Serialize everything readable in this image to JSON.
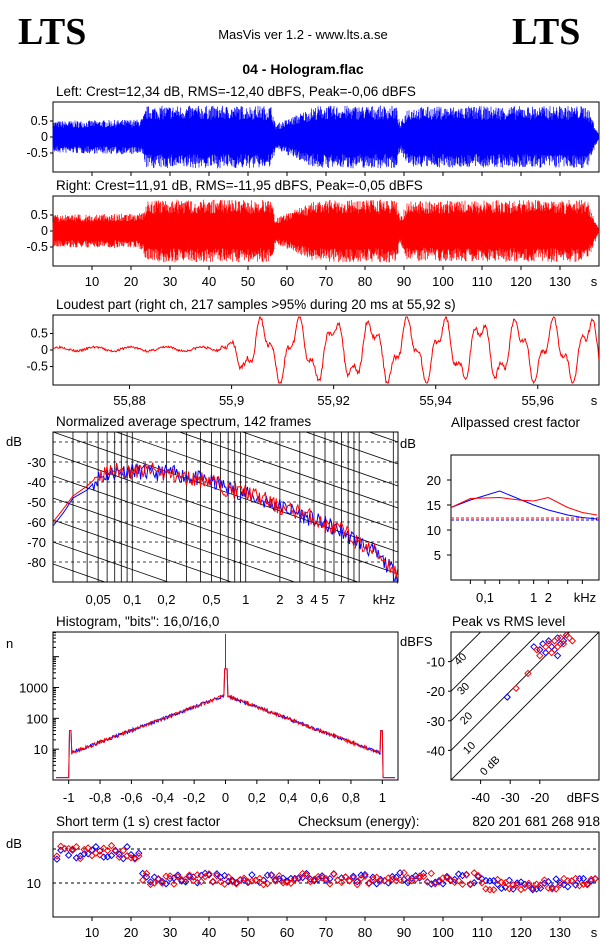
{
  "header": {
    "logo_left": "LTS",
    "logo_right": "LTS",
    "subtitle": "MasVis ver 1.2 - www.lts.a.se",
    "track_title": "04 - Hologram.flac"
  },
  "chart_data": [
    {
      "id": "left-waveform",
      "type": "area",
      "title": "Left: Crest=12,34 dB, RMS=-12,40 dBFS, Peak=-0,06 dBFS",
      "color": "#0000ff",
      "yticks": [
        "0.5",
        "0",
        "-0.5"
      ],
      "ylim": [
        -1,
        1
      ],
      "xlim": [
        0,
        140
      ],
      "x_unit": "s",
      "envelope": {
        "x": [
          0,
          22,
          23,
          24,
          26,
          56,
          57,
          59,
          66,
          68,
          88,
          89,
          91,
          137,
          140
        ],
        "peak": [
          0.5,
          0.55,
          0.6,
          0.97,
          0.98,
          0.98,
          0.4,
          0.5,
          0.9,
          0.98,
          0.98,
          0.4,
          0.95,
          0.98,
          0.05
        ]
      }
    },
    {
      "id": "right-waveform",
      "type": "area",
      "title": "Right: Crest=11,91 dB, RMS=-11,95 dBFS, Peak=-0,05 dBFS",
      "color": "#ff0000",
      "yticks": [
        "0.5",
        "0",
        "-0.5"
      ],
      "ylim": [
        -1,
        1
      ],
      "xlim": [
        0,
        140
      ],
      "x_unit": "s",
      "xticks": [
        "10",
        "20",
        "30",
        "40",
        "50",
        "60",
        "70",
        "80",
        "90",
        "100",
        "110",
        "120",
        "130",
        "s"
      ],
      "envelope": {
        "x": [
          0,
          22,
          23,
          24,
          26,
          56,
          57,
          59,
          66,
          68,
          88,
          89,
          91,
          137,
          140
        ],
        "peak": [
          0.5,
          0.55,
          0.6,
          0.97,
          0.98,
          0.98,
          0.4,
          0.5,
          0.9,
          0.98,
          0.98,
          0.4,
          0.95,
          0.98,
          0.05
        ]
      }
    },
    {
      "id": "loudest-part",
      "type": "line",
      "title": "Loudest part (right ch, 217 samples >95% during 20 ms at 55,92 s)",
      "color": "#ff0000",
      "yticks": [
        "0.5",
        "0",
        "-0.5"
      ],
      "ylim": [
        -1,
        1
      ],
      "xlim": [
        55.865,
        55.972
      ],
      "xticks": [
        "55,88",
        "55,9",
        "55,92",
        "55,94",
        "55,96",
        "s"
      ]
    },
    {
      "id": "spectrum",
      "type": "line",
      "title": "Normalized average spectrum, 142 frames",
      "ylabel": "dB",
      "xlabel": "kHz",
      "yticks": [
        "-30",
        "-40",
        "-50",
        "-60",
        "-70",
        "-80"
      ],
      "ylim": [
        -90,
        -15
      ],
      "xticks": [
        "0,05",
        "0,1",
        "0,2",
        "0,5",
        "1",
        "2",
        "3",
        "4",
        "5",
        "7",
        "kHz"
      ],
      "xlim_khz": [
        0.02,
        22
      ],
      "series": [
        {
          "color": "#0000ff",
          "x_khz": [
            0.02,
            0.025,
            0.03,
            0.04,
            0.05,
            0.07,
            0.1,
            0.15,
            0.2,
            0.3,
            0.5,
            0.7,
            1,
            1.5,
            2,
            3,
            4,
            5,
            7,
            10,
            14,
            18,
            22
          ],
          "y": [
            -62,
            -55,
            -48,
            -44,
            -38,
            -35,
            -34,
            -36,
            -35,
            -37,
            -40,
            -43,
            -46,
            -50,
            -52,
            -56,
            -59,
            -61,
            -65,
            -70,
            -76,
            -82,
            -87
          ]
        },
        {
          "color": "#ff0000",
          "x_khz": [
            0.02,
            0.025,
            0.03,
            0.04,
            0.05,
            0.07,
            0.1,
            0.15,
            0.2,
            0.3,
            0.5,
            0.7,
            1,
            1.5,
            2,
            3,
            4,
            5,
            7,
            10,
            14,
            18,
            22
          ],
          "y": [
            -60,
            -53,
            -47,
            -42,
            -37,
            -34,
            -35,
            -34,
            -36,
            -38,
            -39,
            -44,
            -45,
            -49,
            -53,
            -55,
            -58,
            -62,
            -64,
            -71,
            -75,
            -81,
            -86
          ]
        }
      ]
    },
    {
      "id": "allpassed-crest",
      "type": "line",
      "title": "Allpassed crest factor",
      "ylabel": "dB",
      "xlabel": "kHz",
      "yticks": [
        "20",
        "15",
        "10",
        "5"
      ],
      "ylim": [
        0,
        25
      ],
      "xticks": [
        "0,1",
        "1",
        "2",
        "kHz"
      ],
      "series": [
        {
          "color": "#0000ff",
          "x_khz": [
            0.02,
            0.05,
            0.2,
            0.5,
            1,
            2,
            5,
            10,
            20
          ],
          "y": [
            14.5,
            16,
            17.8,
            16.2,
            15,
            14,
            13,
            12.5,
            12.2
          ]
        },
        {
          "color": "#ff0000",
          "x_khz": [
            0.02,
            0.05,
            0.2,
            0.5,
            1,
            2,
            5,
            10,
            20
          ],
          "y": [
            14.5,
            16.3,
            16.5,
            16,
            15.8,
            16.5,
            14.5,
            13.5,
            13
          ]
        }
      ],
      "reference": {
        "blue": 12.0,
        "red": 12.4
      }
    },
    {
      "id": "histogram",
      "type": "line",
      "title": "Histogram, \"bits\": 16,0/16,0",
      "ylabel": "n",
      "yticks": [
        "1000",
        "100",
        "10"
      ],
      "xticks": [
        "-1",
        "-0,8",
        "-0,6",
        "-0,4",
        "-0,2",
        "0",
        "0,2",
        "0,4",
        "0,6",
        "0,8",
        "1"
      ],
      "xlim": [
        -1.1,
        1.1
      ],
      "ylog": true
    },
    {
      "id": "peak-vs-rms",
      "type": "scatter",
      "title": "Peak vs RMS level",
      "ylabel": "dBFS",
      "xlabel": "dBFS",
      "yticks": [
        "-10",
        "-20",
        "-30",
        "-40"
      ],
      "xticks": [
        "-40",
        "-30",
        "-20"
      ],
      "diagonal_labels": [
        "40",
        "30",
        "20",
        "10",
        "0 dB"
      ],
      "xlim": [
        -50,
        0
      ],
      "ylim": [
        -50,
        0
      ],
      "series": [
        {
          "color": "#0000ff",
          "x": [
            -22,
            -20,
            -19,
            -18,
            -17,
            -16,
            -15,
            -14,
            -13,
            -12,
            -11,
            -14,
            -31
          ],
          "y": [
            -5,
            -6,
            -4,
            -7,
            -3,
            -5,
            -6,
            -2,
            -4,
            -3,
            -1,
            -8,
            -22
          ]
        },
        {
          "color": "#ff0000",
          "x": [
            -21,
            -20,
            -18,
            -17,
            -16,
            -15,
            -14,
            -13,
            -12,
            -11,
            -10,
            -9,
            -28,
            -24
          ],
          "y": [
            -6,
            -8,
            -5,
            -4,
            -7,
            -3,
            -5,
            -2,
            -4,
            -1,
            -2,
            -3,
            -19,
            -14
          ]
        }
      ]
    },
    {
      "id": "short-term-crest",
      "type": "scatter",
      "title": "Short term (1 s) crest factor",
      "checksum_label": "Checksum (energy):",
      "checksum_value": "820 201 681 268 918",
      "ylabel": "dB",
      "yticks": [
        "10"
      ],
      "xticks": [
        "10",
        "20",
        "30",
        "40",
        "50",
        "60",
        "70",
        "80",
        "90",
        "100",
        "110",
        "120",
        "130",
        "s"
      ],
      "xlim": [
        0,
        140
      ],
      "ylim": [
        0,
        25
      ],
      "dashed_lines": [
        10,
        20
      ]
    }
  ]
}
